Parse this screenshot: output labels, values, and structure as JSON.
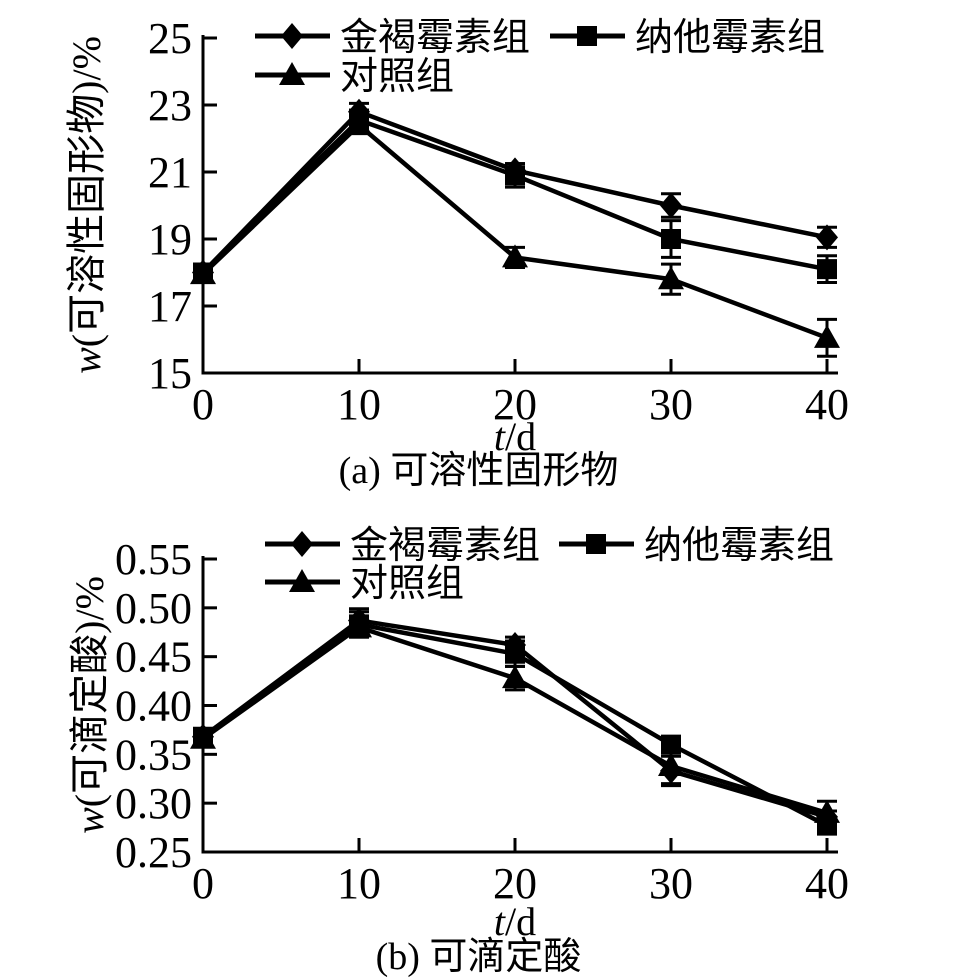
{
  "figure": {
    "background": "#ffffff",
    "ink_color": "#000000",
    "description": "Two stacked black-and-white line charts with error bars"
  },
  "legend": {
    "items": [
      {
        "label": "金褐霉素组",
        "marker": "diamond"
      },
      {
        "label": "纳他霉素组",
        "marker": "square"
      },
      {
        "label": "对照组",
        "marker": "triangle"
      }
    ]
  },
  "chart_data": [
    {
      "id": "a",
      "type": "line",
      "caption": "(a) 可溶性固形物",
      "xlabel": "t/d",
      "ylabel": "w(可溶性固形物)/%",
      "xlim": [
        0,
        40
      ],
      "ylim": [
        15,
        25
      ],
      "x": [
        0,
        10,
        20,
        30,
        40
      ],
      "xtick_labels": [
        "0",
        "10",
        "20",
        "30",
        "40"
      ],
      "ytick_values": [
        15,
        17,
        19,
        21,
        23,
        25
      ],
      "ytick_labels": [
        "15",
        "17",
        "19",
        "21",
        "23",
        "25"
      ],
      "grid": false,
      "legend_position": "top-inside",
      "series": [
        {
          "name": "金褐霉素组",
          "marker": "diamond",
          "color": "#000000",
          "values": [
            18.0,
            22.8,
            21.05,
            20.0,
            19.05
          ],
          "errors": [
            0.2,
            0.25,
            0.2,
            0.35,
            0.3
          ]
        },
        {
          "name": "纳他霉素组",
          "marker": "square",
          "color": "#000000",
          "values": [
            18.0,
            22.55,
            20.9,
            19.0,
            18.1
          ],
          "errors": [
            0.2,
            0.3,
            0.35,
            0.55,
            0.4
          ]
        },
        {
          "name": "对照组",
          "marker": "triangle",
          "color": "#000000",
          "values": [
            17.95,
            22.4,
            18.45,
            17.8,
            16.05
          ],
          "errors": [
            0.2,
            0.25,
            0.3,
            0.45,
            0.55
          ]
        }
      ]
    },
    {
      "id": "b",
      "type": "line",
      "caption": "(b) 可滴定酸",
      "xlabel": "t/d",
      "ylabel": "w(可滴定酸)/%",
      "xlim": [
        0,
        40
      ],
      "ylim": [
        0.25,
        0.55
      ],
      "x": [
        0,
        10,
        20,
        30,
        40
      ],
      "xtick_labels": [
        "0",
        "10",
        "20",
        "30",
        "40"
      ],
      "ytick_values": [
        0.25,
        0.3,
        0.35,
        0.4,
        0.45,
        0.5,
        0.55
      ],
      "ytick_labels": [
        "0.25",
        "0.30",
        "0.35",
        "0.40",
        "0.45",
        "0.50",
        "0.55"
      ],
      "grid": false,
      "legend_position": "top-inside",
      "series": [
        {
          "name": "金褐霉素组",
          "marker": "diamond",
          "color": "#000000",
          "values": [
            0.368,
            0.487,
            0.462,
            0.333,
            0.286
          ],
          "errors": [
            0.008,
            0.012,
            0.008,
            0.015,
            0.006
          ]
        },
        {
          "name": "纳他霉素组",
          "marker": "square",
          "color": "#000000",
          "values": [
            0.368,
            0.483,
            0.453,
            0.36,
            0.277
          ],
          "errors": [
            0.008,
            0.013,
            0.013,
            0.008,
            0.008
          ]
        },
        {
          "name": "对照组",
          "marker": "triangle",
          "color": "#000000",
          "values": [
            0.366,
            0.48,
            0.428,
            0.338,
            0.29
          ],
          "errors": [
            0.008,
            0.01,
            0.012,
            0.018,
            0.012
          ]
        }
      ]
    }
  ]
}
